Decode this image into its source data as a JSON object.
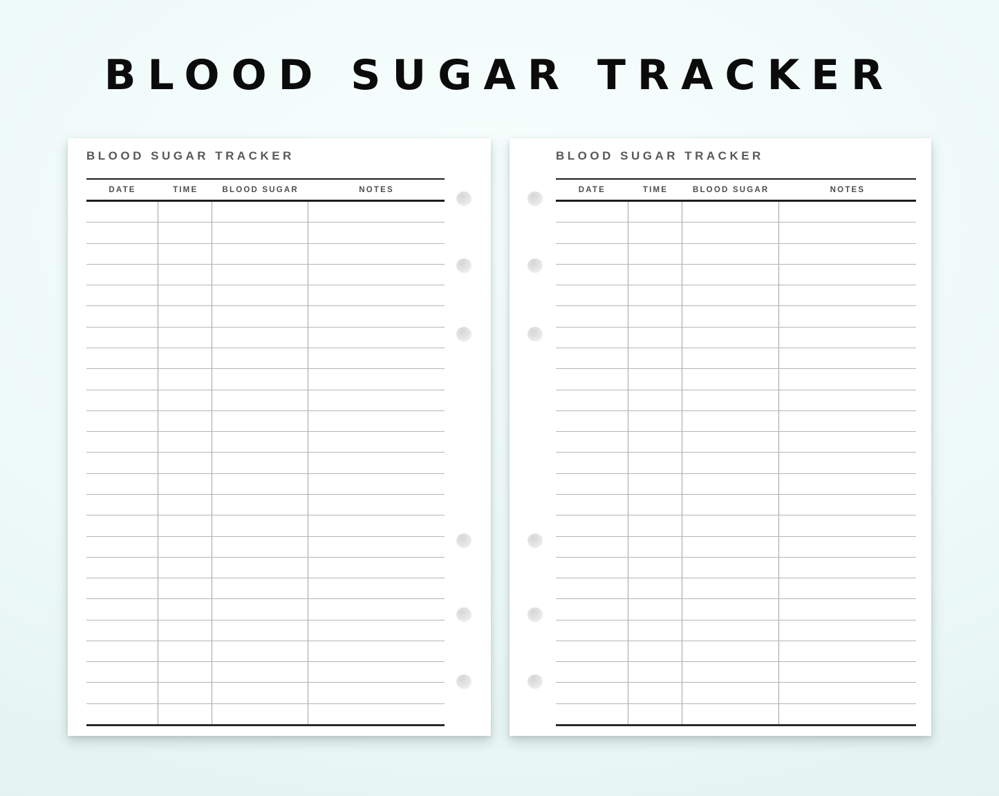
{
  "title": "BLOOD SUGAR TRACKER",
  "colors": {
    "background_top": "#f8fffe",
    "background_bottom": "#ddefec",
    "page": "#ffffff",
    "main_title_text": "#0b0b0b",
    "page_title_text": "#585858",
    "column_header_text": "#4c4c4c",
    "thick_line": "#1d1d1d",
    "thin_row_line": "#b5b5b5",
    "column_divider_line": "#a2a2a2",
    "binder_hole": "#e3e3e3"
  },
  "pages": [
    {
      "title": "BLOOD SUGAR TRACKER",
      "columns": [
        {
          "label": "DATE",
          "width_pct": 20.1
        },
        {
          "label": "TIME",
          "width_pct": 15.1
        },
        {
          "label": "BLOOD SUGAR",
          "width_pct": 26.8
        },
        {
          "label": "NOTES",
          "width_pct": 38.0
        }
      ],
      "row_count": 25,
      "rows": [],
      "holes_side": "right",
      "hole_count": 6
    },
    {
      "title": "BLOOD SUGAR TRACKER",
      "columns": [
        {
          "label": "DATE",
          "width_pct": 20.1
        },
        {
          "label": "TIME",
          "width_pct": 15.1
        },
        {
          "label": "BLOOD SUGAR",
          "width_pct": 26.8
        },
        {
          "label": "NOTES",
          "width_pct": 38.0
        }
      ],
      "row_count": 25,
      "rows": [],
      "holes_side": "left",
      "hole_count": 6
    }
  ]
}
